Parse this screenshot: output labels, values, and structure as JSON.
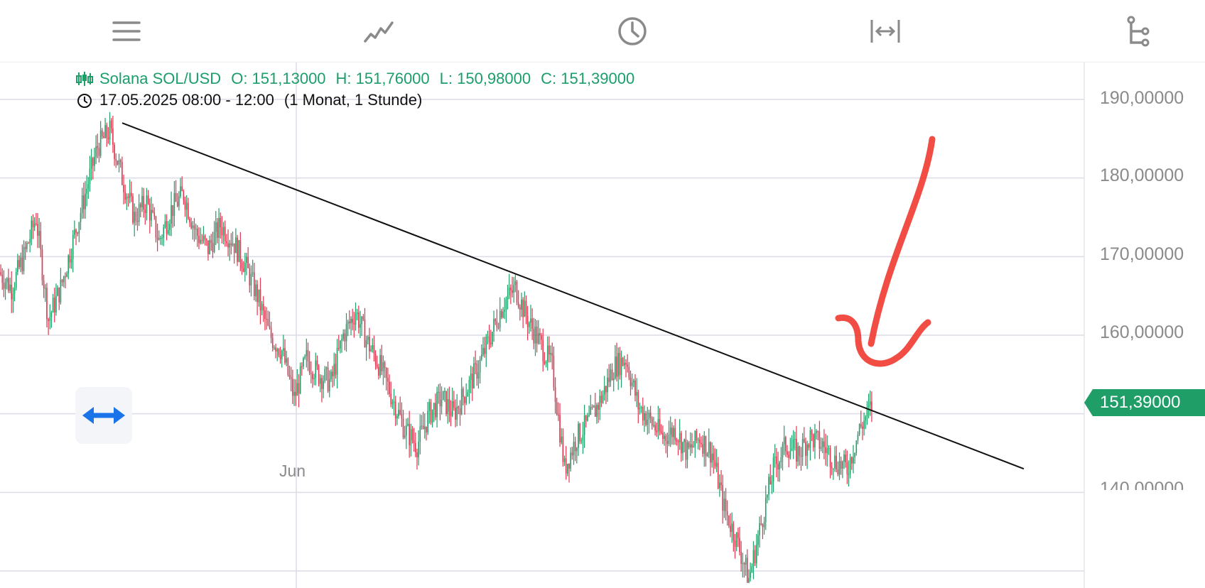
{
  "toolbar": {
    "icons": [
      "menu-icon",
      "line-chart-icon",
      "clock-icon",
      "fit-width-icon",
      "hierarchy-icon"
    ]
  },
  "legend": {
    "instrument": "Solana SOL/USD",
    "open": "O: 151,13000",
    "high": "H: 151,76000",
    "low": "L: 150,98000",
    "close": "C: 151,39000",
    "time_range": "17.05.2025 08:00 - 12:00",
    "period": "(1 Monat, 1 Stunde)"
  },
  "colors": {
    "up": "#1f9e68",
    "down": "#e2364f",
    "accent": "#1f9e68",
    "annotation": "#f03a30",
    "button_blue": "#1a73e8"
  },
  "chart_data": {
    "type": "candlestick",
    "instrument": "Solana SOL/USD",
    "x_labels": [
      "Jun"
    ],
    "y_ticks": [
      "190,00000",
      "180,00000",
      "170,00000",
      "160,00000",
      "140,00000"
    ],
    "ylim": [
      128,
      195
    ],
    "current_price": "151,39000",
    "trendline": {
      "start": 187,
      "end": 143
    },
    "approx_closes": [
      168,
      166,
      170,
      175,
      162,
      166,
      172,
      178,
      184,
      186,
      180,
      175,
      177,
      172,
      176,
      178,
      173,
      171,
      174,
      172,
      169,
      165,
      160,
      158,
      152,
      157,
      155,
      154,
      160,
      163,
      159,
      156,
      152,
      148,
      146,
      150,
      152,
      150,
      153,
      156,
      160,
      164,
      166,
      162,
      159,
      156,
      143,
      147,
      149,
      152,
      156,
      157,
      151,
      149,
      147,
      148,
      145,
      147,
      145,
      138,
      134,
      129,
      136,
      143,
      146,
      145,
      147,
      146,
      144,
      143,
      148,
      151
    ]
  },
  "float_button": {
    "icon": "horizontal-resize-icon"
  }
}
